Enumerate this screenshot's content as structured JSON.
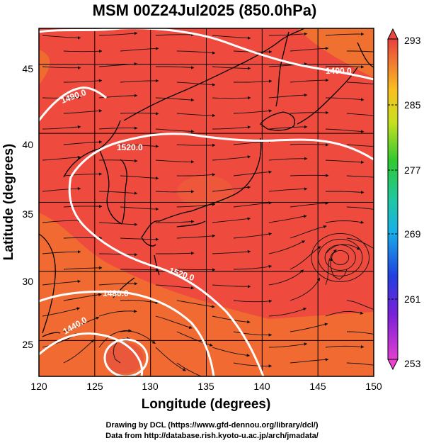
{
  "title": "MSM 00Z24Jul2025 (850.0hPa)",
  "chart_data": {
    "type": "heatmap",
    "title": "MSM 00Z24Jul2025 (850.0hPa)",
    "xlabel": "Longitude (degrees)",
    "ylabel": "Latitude  (degrees)",
    "xlim": [
      120,
      150
    ],
    "ylim": [
      22.4,
      47.6
    ],
    "xticks": [
      "120",
      "125",
      "130",
      "135",
      "140",
      "145",
      "150"
    ],
    "yticks": [
      "25",
      "30",
      "35",
      "40",
      "45"
    ],
    "colorbar": {
      "min": 253,
      "max": 293,
      "ticks": [
        "293",
        "285",
        "277",
        "269",
        "261",
        "253"
      ]
    },
    "contour_labels": [
      "1490.0",
      "1490.0",
      "1520.0",
      "1520.0",
      "1480.0",
      "1440.0"
    ],
    "cyclone_center": {
      "lon": 147.0,
      "lat": 31.0
    },
    "typhoon_center": {
      "lon": 127.5,
      "lat": 24.5
    }
  },
  "credits": {
    "line1": "Drawing by DCL (https://www.gfd-dennou.org/library/dcl/)",
    "line2": "Data from http://database.rish.kyoto-u.ac.jp/arch/jmadata/"
  },
  "colors": {
    "field_main": "#ee4a3e",
    "field_warm": "#f07a2c",
    "contour": "#ffffff",
    "coast": "#000000"
  }
}
